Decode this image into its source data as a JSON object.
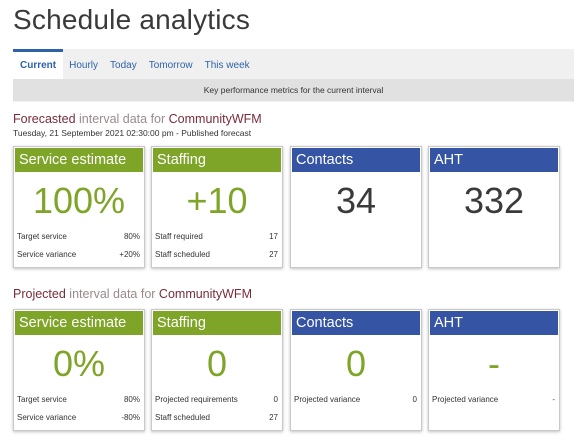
{
  "page": {
    "title": "Schedule analytics"
  },
  "tabs": {
    "items": [
      {
        "label": "Current",
        "active": true
      },
      {
        "label": "Hourly",
        "active": false
      },
      {
        "label": "Today",
        "active": false
      },
      {
        "label": "Tomorrow",
        "active": false
      },
      {
        "label": "This week",
        "active": false
      }
    ],
    "description": "Key performance metrics for the current interval"
  },
  "forecasted": {
    "heading": {
      "accent": "Forecasted",
      "muted": " interval data for ",
      "name": "CommunityWFM"
    },
    "subheading": "Tuesday, 21 September 2021 02:30:00 pm - Published forecast",
    "cards": [
      {
        "title": "Service estimate",
        "value": "100%",
        "color": "green",
        "rows": [
          {
            "label": "Target service",
            "value": "80%"
          },
          {
            "label": "Service variance",
            "value": "+20%"
          }
        ]
      },
      {
        "title": "Staffing",
        "value": "+10",
        "color": "green",
        "rows": [
          {
            "label": "Staff required",
            "value": "17"
          },
          {
            "label": "Staff scheduled",
            "value": "27"
          }
        ]
      },
      {
        "title": "Contacts",
        "value": "34",
        "color": "blue",
        "rows": []
      },
      {
        "title": "AHT",
        "value": "332",
        "color": "blue",
        "rows": []
      }
    ]
  },
  "projected": {
    "heading": {
      "accent": "Projected",
      "muted": " interval data for ",
      "name": "CommunityWFM"
    },
    "cards": [
      {
        "title": "Service estimate",
        "value": "0%",
        "color": "green",
        "rows": [
          {
            "label": "Target service",
            "value": "80%"
          },
          {
            "label": "Service variance",
            "value": "-80%"
          }
        ]
      },
      {
        "title": "Staffing",
        "value": "0",
        "color": "green",
        "rows": [
          {
            "label": "Projected requirements",
            "value": "0"
          },
          {
            "label": "Staff scheduled",
            "value": "27"
          }
        ]
      },
      {
        "title": "Contacts",
        "value": "0",
        "color": "blue",
        "rows": [
          {
            "label": "Projected variance",
            "value": "0"
          }
        ]
      },
      {
        "title": "AHT",
        "value": "-",
        "color": "blue",
        "rows": [
          {
            "label": "Projected variance",
            "value": "-"
          }
        ]
      }
    ]
  },
  "colors": {
    "green": "#7ea428",
    "blue": "#3554a3",
    "accent": "#7a2c3a",
    "tab": "#2e63a8"
  }
}
